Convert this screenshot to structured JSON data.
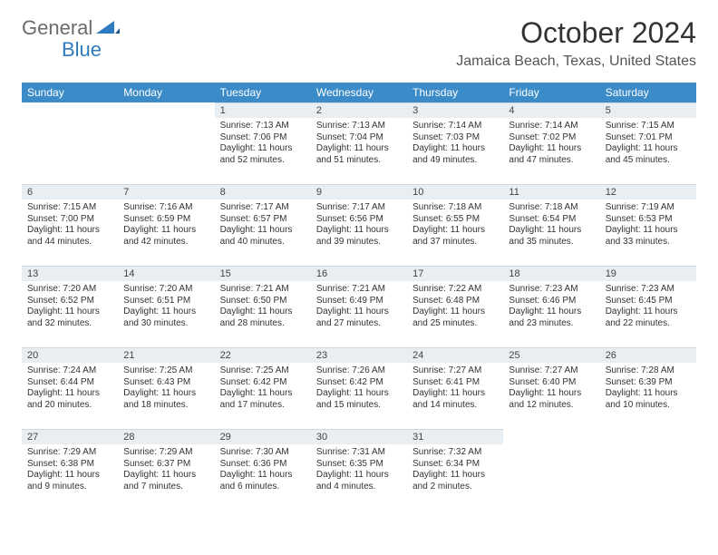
{
  "brand": {
    "part1": "General",
    "part2": "Blue"
  },
  "title": "October 2024",
  "location": "Jamaica Beach, Texas, United States",
  "colors": {
    "header_bg": "#3b8bc8",
    "header_text": "#ffffff",
    "daynum_bg": "#e8eef2",
    "text": "#333333",
    "brand_gray": "#6b6b6b",
    "brand_blue": "#2f7bbf",
    "page_bg": "#ffffff"
  },
  "weekdays": [
    "Sunday",
    "Monday",
    "Tuesday",
    "Wednesday",
    "Thursday",
    "Friday",
    "Saturday"
  ],
  "weeks": [
    [
      null,
      null,
      {
        "d": "1",
        "sr": "7:13 AM",
        "ss": "7:06 PM",
        "dl": "11 hours and 52 minutes."
      },
      {
        "d": "2",
        "sr": "7:13 AM",
        "ss": "7:04 PM",
        "dl": "11 hours and 51 minutes."
      },
      {
        "d": "3",
        "sr": "7:14 AM",
        "ss": "7:03 PM",
        "dl": "11 hours and 49 minutes."
      },
      {
        "d": "4",
        "sr": "7:14 AM",
        "ss": "7:02 PM",
        "dl": "11 hours and 47 minutes."
      },
      {
        "d": "5",
        "sr": "7:15 AM",
        "ss": "7:01 PM",
        "dl": "11 hours and 45 minutes."
      }
    ],
    [
      {
        "d": "6",
        "sr": "7:15 AM",
        "ss": "7:00 PM",
        "dl": "11 hours and 44 minutes."
      },
      {
        "d": "7",
        "sr": "7:16 AM",
        "ss": "6:59 PM",
        "dl": "11 hours and 42 minutes."
      },
      {
        "d": "8",
        "sr": "7:17 AM",
        "ss": "6:57 PM",
        "dl": "11 hours and 40 minutes."
      },
      {
        "d": "9",
        "sr": "7:17 AM",
        "ss": "6:56 PM",
        "dl": "11 hours and 39 minutes."
      },
      {
        "d": "10",
        "sr": "7:18 AM",
        "ss": "6:55 PM",
        "dl": "11 hours and 37 minutes."
      },
      {
        "d": "11",
        "sr": "7:18 AM",
        "ss": "6:54 PM",
        "dl": "11 hours and 35 minutes."
      },
      {
        "d": "12",
        "sr": "7:19 AM",
        "ss": "6:53 PM",
        "dl": "11 hours and 33 minutes."
      }
    ],
    [
      {
        "d": "13",
        "sr": "7:20 AM",
        "ss": "6:52 PM",
        "dl": "11 hours and 32 minutes."
      },
      {
        "d": "14",
        "sr": "7:20 AM",
        "ss": "6:51 PM",
        "dl": "11 hours and 30 minutes."
      },
      {
        "d": "15",
        "sr": "7:21 AM",
        "ss": "6:50 PM",
        "dl": "11 hours and 28 minutes."
      },
      {
        "d": "16",
        "sr": "7:21 AM",
        "ss": "6:49 PM",
        "dl": "11 hours and 27 minutes."
      },
      {
        "d": "17",
        "sr": "7:22 AM",
        "ss": "6:48 PM",
        "dl": "11 hours and 25 minutes."
      },
      {
        "d": "18",
        "sr": "7:23 AM",
        "ss": "6:46 PM",
        "dl": "11 hours and 23 minutes."
      },
      {
        "d": "19",
        "sr": "7:23 AM",
        "ss": "6:45 PM",
        "dl": "11 hours and 22 minutes."
      }
    ],
    [
      {
        "d": "20",
        "sr": "7:24 AM",
        "ss": "6:44 PM",
        "dl": "11 hours and 20 minutes."
      },
      {
        "d": "21",
        "sr": "7:25 AM",
        "ss": "6:43 PM",
        "dl": "11 hours and 18 minutes."
      },
      {
        "d": "22",
        "sr": "7:25 AM",
        "ss": "6:42 PM",
        "dl": "11 hours and 17 minutes."
      },
      {
        "d": "23",
        "sr": "7:26 AM",
        "ss": "6:42 PM",
        "dl": "11 hours and 15 minutes."
      },
      {
        "d": "24",
        "sr": "7:27 AM",
        "ss": "6:41 PM",
        "dl": "11 hours and 14 minutes."
      },
      {
        "d": "25",
        "sr": "7:27 AM",
        "ss": "6:40 PM",
        "dl": "11 hours and 12 minutes."
      },
      {
        "d": "26",
        "sr": "7:28 AM",
        "ss": "6:39 PM",
        "dl": "11 hours and 10 minutes."
      }
    ],
    [
      {
        "d": "27",
        "sr": "7:29 AM",
        "ss": "6:38 PM",
        "dl": "11 hours and 9 minutes."
      },
      {
        "d": "28",
        "sr": "7:29 AM",
        "ss": "6:37 PM",
        "dl": "11 hours and 7 minutes."
      },
      {
        "d": "29",
        "sr": "7:30 AM",
        "ss": "6:36 PM",
        "dl": "11 hours and 6 minutes."
      },
      {
        "d": "30",
        "sr": "7:31 AM",
        "ss": "6:35 PM",
        "dl": "11 hours and 4 minutes."
      },
      {
        "d": "31",
        "sr": "7:32 AM",
        "ss": "6:34 PM",
        "dl": "11 hours and 2 minutes."
      },
      null,
      null
    ]
  ],
  "labels": {
    "sunrise": "Sunrise:",
    "sunset": "Sunset:",
    "daylight": "Daylight:"
  }
}
